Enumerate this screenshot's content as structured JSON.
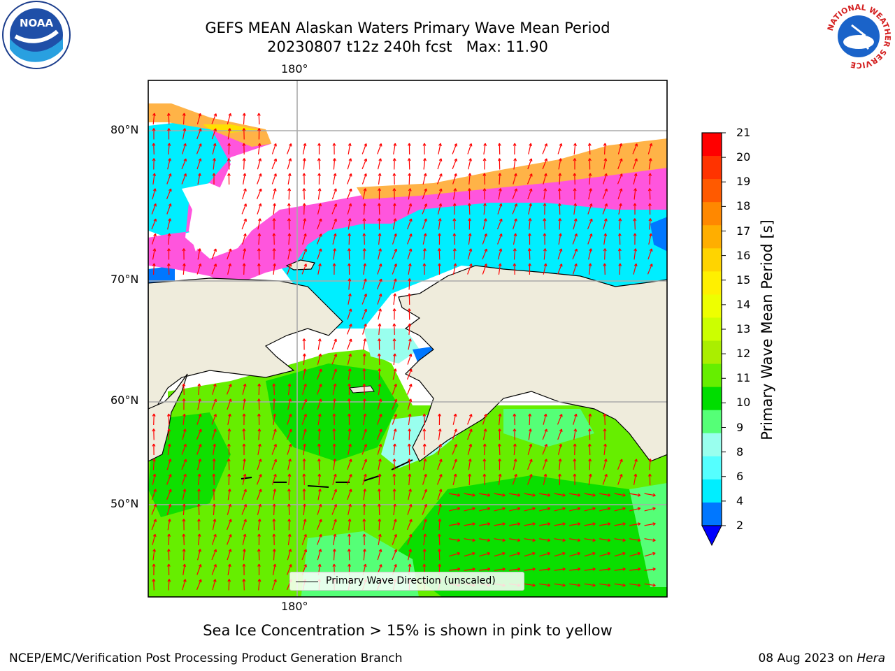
{
  "title": {
    "line1": "GEFS MEAN Alaskan Waters Primary Wave Mean Period",
    "line2": "20230807 t12z 240h fcst   Max: 11.90"
  },
  "axes": {
    "lon_top": "180°",
    "lon_bottom": "180°",
    "lat_labels": [
      "80°N",
      "70°N",
      "60°N",
      "50°N"
    ]
  },
  "legend": {
    "label": "Primary Wave Direction (unscaled)"
  },
  "colorbar": {
    "label": "Primary Wave Mean Period [s]",
    "ticks": [
      "21",
      "20",
      "19",
      "18",
      "17",
      "16",
      "15",
      "14",
      "13",
      "12",
      "11",
      "10",
      "9",
      "8",
      "6",
      "4",
      "2"
    ],
    "colors": [
      "#ff0000",
      "#ff3300",
      "#ff5a00",
      "#ff8800",
      "#ffae00",
      "#ffd400",
      "#fff000",
      "#eeff00",
      "#ccff00",
      "#aaee00",
      "#66ee00",
      "#00dd00",
      "#55ff77",
      "#99ffee",
      "#55ffff",
      "#00eeff",
      "#0077ff"
    ],
    "extend_color": "#0000ff"
  },
  "notes": {
    "ice": "Sea Ice Concentration > 15% is shown in pink to yellow"
  },
  "footer": {
    "left": "NCEP/EMC/Verification Post Processing Product Generation Branch",
    "date": "08 Aug 2023 on ",
    "machine": "Hera"
  },
  "logos": {
    "noaa_text": "NOAA",
    "nws_ring": "NATIONAL WEATHER SERVICE"
  },
  "map_colors": {
    "land": "#efecdc",
    "ocean_main": "#66ee00",
    "ocean_dark": "#00dd00",
    "ocean_light": "#55ff77",
    "cyan": "#00eeff",
    "light_cyan": "#99ffee",
    "blue": "#0077ff",
    "ice_pink": "#ff55dd",
    "ice_orange": "#ffb347",
    "ice_yellow": "#ffe000",
    "arrow": "#ff0000",
    "grid": "#aaaaaa"
  }
}
